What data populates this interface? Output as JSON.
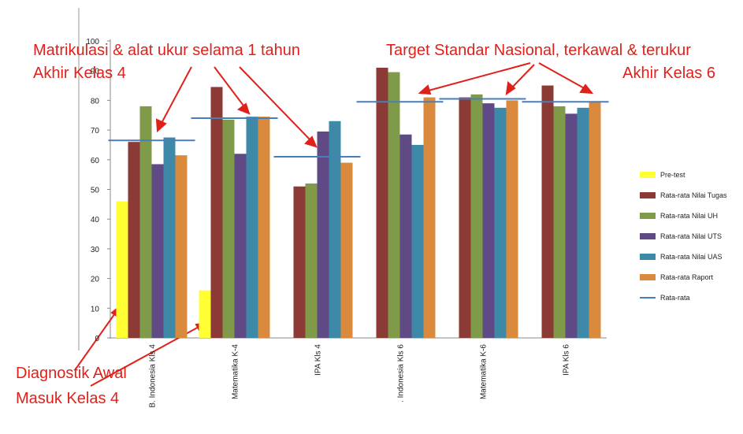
{
  "chart_data": {
    "type": "bar",
    "categories": [
      "B. Indonesia Kls 4",
      "Matematika K-4",
      "IPA Kls 4",
      ". Indonesia Kls 6",
      "Matematika K-6",
      "IPA Kls 6"
    ],
    "series": [
      {
        "name": "Pre-test",
        "color": "#ffff33",
        "values": [
          46,
          16,
          null,
          null,
          null,
          null
        ]
      },
      {
        "name": "Rata-rata Nilai Tugas",
        "color": "#8b3a36",
        "values": [
          66,
          84.5,
          51,
          91,
          81,
          85
        ]
      },
      {
        "name": "Rata-rata Nilai UH",
        "color": "#7f9a48",
        "values": [
          78,
          73.5,
          52,
          89.5,
          82,
          78
        ]
      },
      {
        "name": "Rata-rata Nilai UTS",
        "color": "#5f4a86",
        "values": [
          58.5,
          62,
          69.5,
          68.5,
          79,
          75.5
        ]
      },
      {
        "name": "Rata-rata Nilai UAS",
        "color": "#3f89a8",
        "values": [
          67.5,
          74.5,
          73,
          65,
          77.5,
          77.5
        ]
      },
      {
        "name": "Rata-rata  Raport",
        "color": "#d98a3d",
        "values": [
          61.5,
          74.5,
          59,
          81,
          80,
          79.5
        ]
      },
      {
        "name": "Rata-rata",
        "color": "#4a7ebb",
        "type": "line",
        "values": [
          66.5,
          74,
          61,
          79.5,
          80.5,
          79.5
        ]
      }
    ],
    "ylim": [
      0,
      100
    ],
    "yticks": [
      0,
      10,
      20,
      30,
      40,
      50,
      60,
      70,
      80,
      90,
      100
    ],
    "grid": false,
    "annotations": [
      "Matrikulasi & alat ukur selama 1 tahun",
      "Akhir Kelas 4",
      "Target Standar Nasional, terkawal & terukur",
      "Akhir Kelas 6",
      "Diagnostik Awal",
      "Masuk Kelas 4"
    ]
  }
}
